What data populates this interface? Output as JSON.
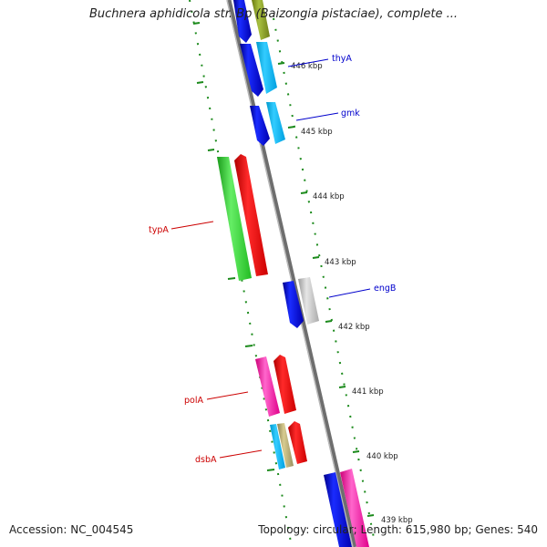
{
  "title": "Buchnera aphidicola str. Bp (Baizongia pistaciae), complete ...",
  "accession": "Accession: NC_004545",
  "summary": "Topology: circular; Length: 615,980 bp; Genes: 540",
  "ticks": [
    "446 kbp",
    "445 kbp",
    "444 kbp",
    "443 kbp",
    "442 kbp",
    "441 kbp",
    "440 kbp",
    "439 kbp"
  ],
  "genes": [
    {
      "label": "thyA",
      "color": "#0000cc"
    },
    {
      "label": "gmk",
      "color": "#0000cc"
    },
    {
      "label": "typA",
      "color": "#cc0000"
    },
    {
      "label": "engB",
      "color": "#0000cc"
    },
    {
      "label": "polA",
      "color": "#cc0000"
    },
    {
      "label": "dsbA",
      "color": "#cc0000"
    }
  ]
}
